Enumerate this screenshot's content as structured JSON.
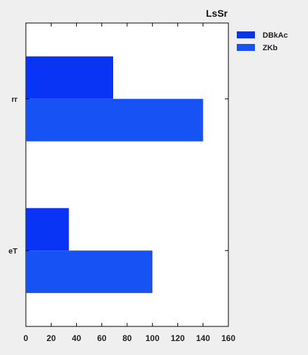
{
  "chart_data": {
    "type": "bar",
    "orientation": "horizontal",
    "title": "LsSr",
    "xlabel": "",
    "ylabel": "",
    "categories": [
      "eT",
      "rr"
    ],
    "series": [
      {
        "name": "DBkAc",
        "values": [
          34,
          69
        ],
        "color": "#0a34f5"
      },
      {
        "name": "ZKb",
        "values": [
          100,
          140
        ],
        "color": "#1752f5"
      }
    ],
    "xlim": [
      0,
      160
    ],
    "xticks": [
      0,
      20,
      40,
      60,
      80,
      100,
      120,
      140,
      160
    ],
    "grid": false,
    "legend": "top-right"
  }
}
